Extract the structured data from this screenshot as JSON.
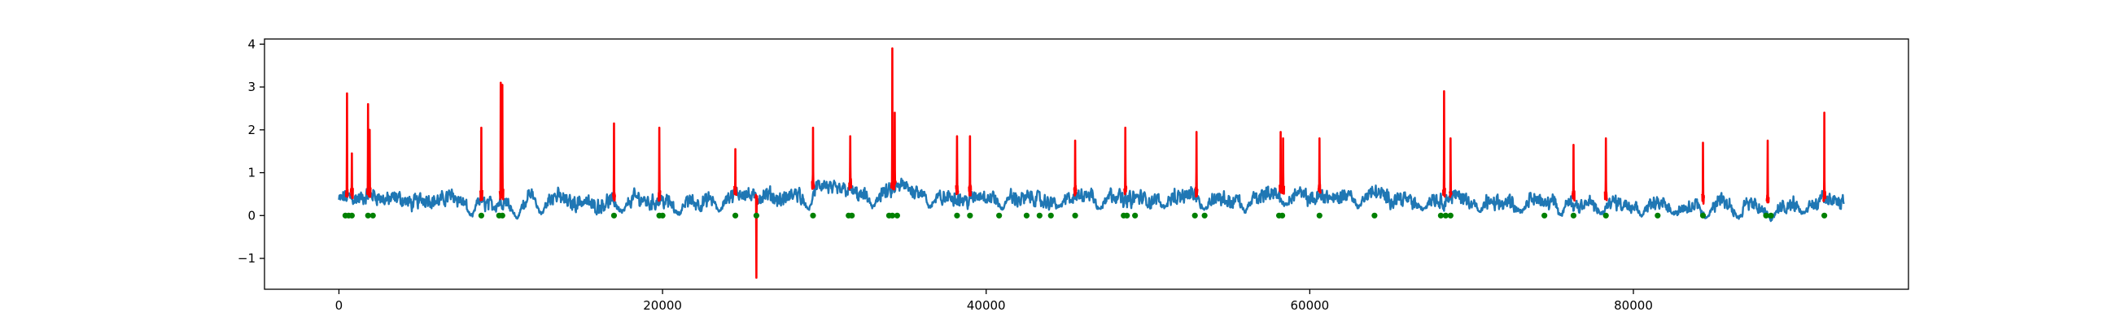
{
  "chart_data": {
    "type": "line",
    "title": "",
    "xlabel": "",
    "ylabel": "",
    "xlim": [
      -4600,
      97000
    ],
    "ylim": [
      -1.72,
      4.12
    ],
    "xticks": [
      0,
      20000,
      40000,
      60000,
      80000
    ],
    "xtick_labels": [
      "0",
      "20000",
      "40000",
      "60000",
      "80000"
    ],
    "yticks": [
      -1,
      0,
      1,
      2,
      3,
      4
    ],
    "ytick_labels": [
      "−1",
      "0",
      "1",
      "2",
      "3",
      "4"
    ],
    "grid": false,
    "legend": "none",
    "colors": {
      "signal": "#1f77b4",
      "spikes": "#ff0000",
      "markers": "#008000",
      "frame": "#000000",
      "background": "#ffffff"
    },
    "series": [
      {
        "kind": "line",
        "x_range": [
          0,
          93000
        ],
        "baseline": [
          [
            0,
            0.35
          ],
          [
            3000,
            0.42
          ],
          [
            8000,
            0.32
          ],
          [
            12000,
            0.38
          ],
          [
            18000,
            0.3
          ],
          [
            23000,
            0.35
          ],
          [
            26000,
            0.5
          ],
          [
            28000,
            0.45
          ],
          [
            30000,
            0.62
          ],
          [
            33000,
            0.55
          ],
          [
            35000,
            0.6
          ],
          [
            38000,
            0.45
          ],
          [
            42000,
            0.4
          ],
          [
            48000,
            0.45
          ],
          [
            52000,
            0.4
          ],
          [
            57000,
            0.45
          ],
          [
            62000,
            0.48
          ],
          [
            66000,
            0.4
          ],
          [
            70000,
            0.35
          ],
          [
            76000,
            0.3
          ],
          [
            80000,
            0.28
          ],
          [
            84000,
            0.25
          ],
          [
            88000,
            0.22
          ],
          [
            93000,
            0.3
          ]
        ],
        "dips": [
          [
            8200,
            0.0
          ],
          [
            11000,
            -0.05
          ],
          [
            12500,
            0.05
          ],
          [
            17500,
            0.1
          ],
          [
            21000,
            0.05
          ],
          [
            23500,
            0.1
          ],
          [
            29000,
            0.15
          ],
          [
            33000,
            0.2
          ],
          [
            36500,
            0.2
          ],
          [
            41000,
            0.15
          ],
          [
            44500,
            0.2
          ],
          [
            47000,
            0.15
          ],
          [
            51000,
            0.2
          ],
          [
            53500,
            0.15
          ],
          [
            56000,
            0.1
          ],
          [
            58500,
            0.25
          ],
          [
            63000,
            0.2
          ],
          [
            67000,
            0.15
          ],
          [
            70500,
            0.1
          ],
          [
            73000,
            0.1
          ],
          [
            75500,
            0.0
          ],
          [
            78000,
            0.05
          ],
          [
            80500,
            0.0
          ],
          [
            82500,
            0.05
          ],
          [
            84500,
            -0.05
          ],
          [
            86500,
            -0.05
          ],
          [
            88500,
            -0.1
          ],
          [
            90500,
            0.05
          ]
        ]
      },
      {
        "kind": "spikes",
        "events": [
          {
            "x": 500,
            "y": 2.85
          },
          {
            "x": 800,
            "y": 1.45
          },
          {
            "x": 1800,
            "y": 2.6
          },
          {
            "x": 1900,
            "y": 2.0
          },
          {
            "x": 8800,
            "y": 2.05
          },
          {
            "x": 10000,
            "y": 3.1
          },
          {
            "x": 10100,
            "y": 3.05
          },
          {
            "x": 17000,
            "y": 2.15
          },
          {
            "x": 19800,
            "y": 2.05
          },
          {
            "x": 24500,
            "y": 1.55
          },
          {
            "x": 25800,
            "y": -1.45
          },
          {
            "x": 29300,
            "y": 2.05
          },
          {
            "x": 31600,
            "y": 1.85
          },
          {
            "x": 34200,
            "y": 3.9
          },
          {
            "x": 34350,
            "y": 2.4
          },
          {
            "x": 38200,
            "y": 1.85
          },
          {
            "x": 39000,
            "y": 1.85
          },
          {
            "x": 45500,
            "y": 1.75
          },
          {
            "x": 48600,
            "y": 2.05
          },
          {
            "x": 53000,
            "y": 1.95
          },
          {
            "x": 58200,
            "y": 1.95
          },
          {
            "x": 58350,
            "y": 1.8
          },
          {
            "x": 60600,
            "y": 1.8
          },
          {
            "x": 68300,
            "y": 2.9
          },
          {
            "x": 68700,
            "y": 1.8
          },
          {
            "x": 76300,
            "y": 1.65
          },
          {
            "x": 78300,
            "y": 1.8
          },
          {
            "x": 84300,
            "y": 1.7
          },
          {
            "x": 88300,
            "y": 1.75
          },
          {
            "x": 91800,
            "y": 2.4
          }
        ]
      },
      {
        "kind": "scatter",
        "y": 0,
        "x": [
          400,
          600,
          800,
          1800,
          2100,
          8800,
          9900,
          10100,
          17000,
          19800,
          20000,
          24500,
          25800,
          29300,
          31500,
          31700,
          34000,
          34200,
          34500,
          38200,
          39000,
          40800,
          42500,
          43300,
          44000,
          45500,
          48500,
          48700,
          49200,
          52900,
          53500,
          58100,
          58300,
          60600,
          64000,
          68100,
          68400,
          68700,
          74500,
          76300,
          78300,
          81500,
          84300,
          88200,
          88500,
          91800
        ]
      }
    ]
  }
}
